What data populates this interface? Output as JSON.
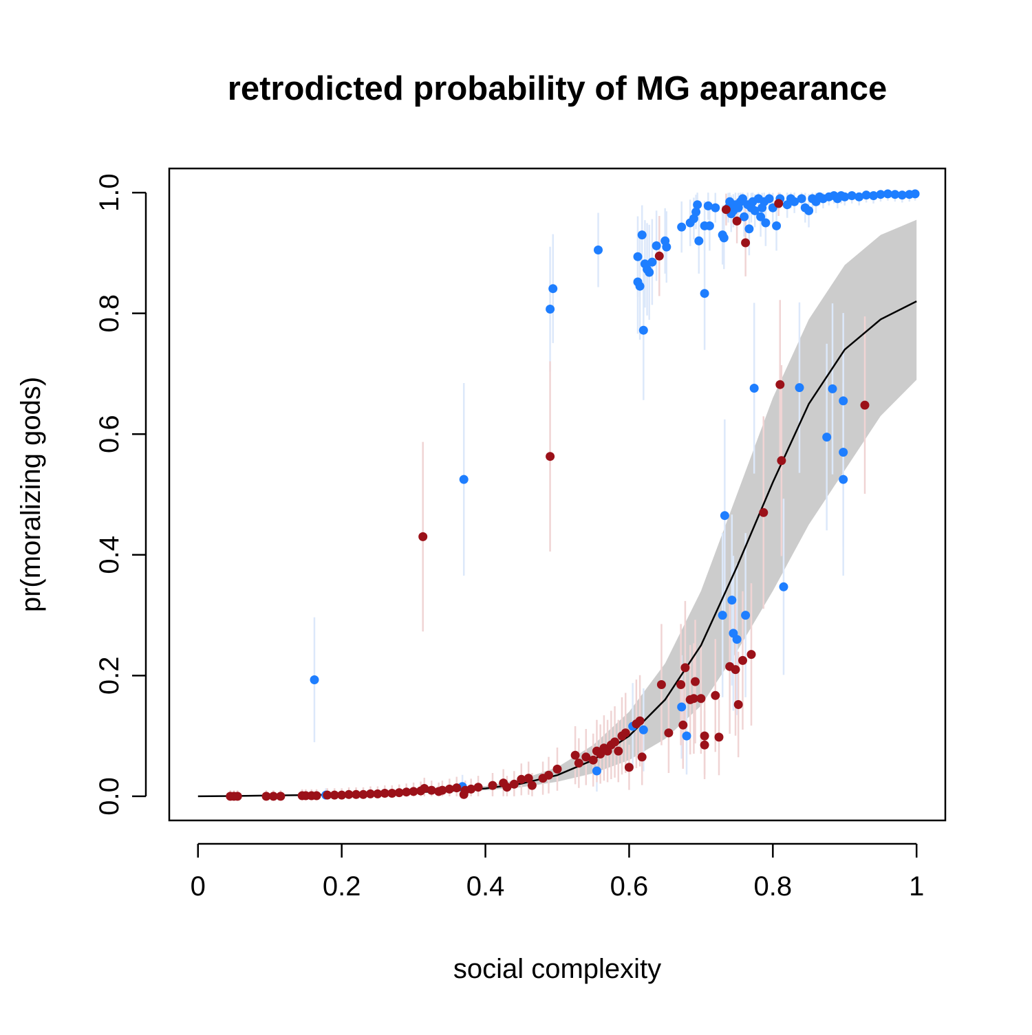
{
  "chart_data": {
    "type": "scatter",
    "title": "retrodicted probability of MG appearance",
    "xlabel": "social complexity",
    "ylabel": "pr(moralizing gods)",
    "xlim": [
      -0.04,
      1.04
    ],
    "ylim": [
      -0.04,
      1.04
    ],
    "x_ticks": [
      {
        "value": 0,
        "label": "0"
      },
      {
        "value": 0.2,
        "label": "0.2"
      },
      {
        "value": 0.4,
        "label": "0.4"
      },
      {
        "value": 0.6,
        "label": "0.6"
      },
      {
        "value": 0.8,
        "label": "0.8"
      },
      {
        "value": 1,
        "label": "1"
      }
    ],
    "y_ticks": [
      {
        "value": 0,
        "label": "0.0"
      },
      {
        "value": 0.2,
        "label": "0.2"
      },
      {
        "value": 0.4,
        "label": "0.4"
      },
      {
        "value": 0.6,
        "label": "0.6"
      },
      {
        "value": 0.8,
        "label": "0.8"
      },
      {
        "value": 1,
        "label": "1.0"
      }
    ],
    "grid": false,
    "legend": "none",
    "colors": {
      "blue_points": "#1E7EFF",
      "red_points": "#9B1119",
      "band_fill": "#CCCCCC",
      "curve": "#000000",
      "blue_interval": "#DCE8FA",
      "red_interval": "#F0D4D4"
    },
    "curve": {
      "x": [
        0,
        0.05,
        0.1,
        0.15,
        0.2,
        0.25,
        0.3,
        0.35,
        0.4,
        0.45,
        0.5,
        0.55,
        0.6,
        0.65,
        0.7,
        0.75,
        0.8,
        0.85,
        0.9,
        0.95,
        1
      ],
      "y": [
        0,
        0.0005,
        0.0012,
        0.002,
        0.003,
        0.0045,
        0.0065,
        0.009,
        0.013,
        0.021,
        0.035,
        0.06,
        0.1,
        0.16,
        0.25,
        0.38,
        0.52,
        0.65,
        0.74,
        0.79,
        0.82
      ],
      "lower": [
        0,
        0.0003,
        0.0008,
        0.0014,
        0.0022,
        0.0033,
        0.005,
        0.007,
        0.01,
        0.015,
        0.024,
        0.038,
        0.06,
        0.095,
        0.15,
        0.24,
        0.34,
        0.45,
        0.54,
        0.63,
        0.69
      ],
      "upper": [
        0,
        0.0008,
        0.0017,
        0.0028,
        0.0042,
        0.006,
        0.0085,
        0.012,
        0.017,
        0.028,
        0.048,
        0.085,
        0.14,
        0.22,
        0.34,
        0.5,
        0.66,
        0.79,
        0.88,
        0.93,
        0.955
      ]
    },
    "series": [
      {
        "color": "blue",
        "points": [
          [
            0.162,
            0.193
          ],
          [
            0.178,
            0.002
          ],
          [
            0.37,
            0.525
          ],
          [
            0.368,
            0.016
          ],
          [
            0.49,
            0.807
          ],
          [
            0.494,
            0.841
          ],
          [
            0.557,
            0.905
          ],
          [
            0.555,
            0.042
          ],
          [
            0.612,
            0.852
          ],
          [
            0.612,
            0.894
          ],
          [
            0.615,
            0.845
          ],
          [
            0.618,
            0.93
          ],
          [
            0.62,
            0.772
          ],
          [
            0.622,
            0.882
          ],
          [
            0.625,
            0.873
          ],
          [
            0.628,
            0.868
          ],
          [
            0.632,
            0.885
          ],
          [
            0.638,
            0.912
          ],
          [
            0.65,
            0.92
          ],
          [
            0.652,
            0.91
          ],
          [
            0.605,
            0.116
          ],
          [
            0.62,
            0.11
          ],
          [
            0.673,
            0.148
          ],
          [
            0.68,
            0.1
          ],
          [
            0.673,
            0.943
          ],
          [
            0.685,
            0.95
          ],
          [
            0.69,
            0.957
          ],
          [
            0.693,
            0.968
          ],
          [
            0.695,
            0.98
          ],
          [
            0.697,
            0.92
          ],
          [
            0.705,
            0.945
          ],
          [
            0.705,
            0.833
          ],
          [
            0.71,
            0.978
          ],
          [
            0.712,
            0.945
          ],
          [
            0.72,
            0.975
          ],
          [
            0.73,
            0.93
          ],
          [
            0.732,
            0.925
          ],
          [
            0.733,
            0.465
          ],
          [
            0.738,
            0.975
          ],
          [
            0.74,
            0.985
          ],
          [
            0.742,
            0.965
          ],
          [
            0.743,
            0.325
          ],
          [
            0.745,
            0.97
          ],
          [
            0.748,
            0.98
          ],
          [
            0.75,
            0.26
          ],
          [
            0.752,
            0.975
          ],
          [
            0.755,
            0.985
          ],
          [
            0.758,
            0.99
          ],
          [
            0.76,
            0.96
          ],
          [
            0.762,
            0.3
          ],
          [
            0.765,
            0.98
          ],
          [
            0.767,
            0.94
          ],
          [
            0.77,
            0.975
          ],
          [
            0.772,
            0.985
          ],
          [
            0.774,
            0.676
          ],
          [
            0.775,
            0.97
          ],
          [
            0.78,
            0.99
          ],
          [
            0.783,
            0.96
          ],
          [
            0.785,
            0.975
          ],
          [
            0.788,
            0.985
          ],
          [
            0.79,
            0.95
          ],
          [
            0.795,
            0.99
          ],
          [
            0.8,
            0.975
          ],
          [
            0.805,
            0.945
          ],
          [
            0.81,
            0.99
          ],
          [
            0.815,
            0.347
          ],
          [
            0.82,
            0.98
          ],
          [
            0.825,
            0.99
          ],
          [
            0.83,
            0.985
          ],
          [
            0.837,
            0.677
          ],
          [
            0.84,
            0.99
          ],
          [
            0.845,
            0.975
          ],
          [
            0.85,
            0.97
          ],
          [
            0.855,
            0.99
          ],
          [
            0.86,
            0.985
          ],
          [
            0.865,
            0.993
          ],
          [
            0.87,
            0.99
          ],
          [
            0.875,
            0.595
          ],
          [
            0.878,
            0.993
          ],
          [
            0.883,
            0.675
          ],
          [
            0.885,
            0.995
          ],
          [
            0.89,
            0.99
          ],
          [
            0.895,
            0.995
          ],
          [
            0.898,
            0.655
          ],
          [
            0.898,
            0.57
          ],
          [
            0.898,
            0.525
          ],
          [
            0.9,
            0.993
          ],
          [
            0.91,
            0.995
          ],
          [
            0.92,
            0.993
          ],
          [
            0.93,
            0.996
          ],
          [
            0.94,
            0.995
          ],
          [
            0.95,
            0.997
          ],
          [
            0.96,
            0.998
          ],
          [
            0.97,
            0.997
          ],
          [
            0.98,
            0.996
          ],
          [
            0.99,
            0.997
          ],
          [
            0.998,
            0.998
          ],
          [
            0.745,
            0.27
          ],
          [
            0.73,
            0.3
          ]
        ]
      },
      {
        "color": "red",
        "points": [
          [
            0.045,
            0
          ],
          [
            0.05,
            0
          ],
          [
            0.055,
            0
          ],
          [
            0.095,
            0
          ],
          [
            0.105,
            0
          ],
          [
            0.115,
            0
          ],
          [
            0.145,
            0.001
          ],
          [
            0.15,
            0.001
          ],
          [
            0.158,
            0.001
          ],
          [
            0.165,
            0.001
          ],
          [
            0.18,
            0.002
          ],
          [
            0.19,
            0.002
          ],
          [
            0.2,
            0.002
          ],
          [
            0.21,
            0.003
          ],
          [
            0.22,
            0.003
          ],
          [
            0.23,
            0.003
          ],
          [
            0.24,
            0.004
          ],
          [
            0.25,
            0.004
          ],
          [
            0.26,
            0.005
          ],
          [
            0.27,
            0.005
          ],
          [
            0.28,
            0.006
          ],
          [
            0.29,
            0.007
          ],
          [
            0.3,
            0.008
          ],
          [
            0.31,
            0.009
          ],
          [
            0.313,
            0.43
          ],
          [
            0.315,
            0.013
          ],
          [
            0.325,
            0.01
          ],
          [
            0.335,
            0.008
          ],
          [
            0.34,
            0.01
          ],
          [
            0.35,
            0.012
          ],
          [
            0.36,
            0.014
          ],
          [
            0.37,
            0.003
          ],
          [
            0.372,
            0.01
          ],
          [
            0.38,
            0.012
          ],
          [
            0.39,
            0.015
          ],
          [
            0.41,
            0.018
          ],
          [
            0.425,
            0.022
          ],
          [
            0.43,
            0.015
          ],
          [
            0.44,
            0.02
          ],
          [
            0.45,
            0.028
          ],
          [
            0.46,
            0.03
          ],
          [
            0.465,
            0.018
          ],
          [
            0.48,
            0.03
          ],
          [
            0.488,
            0.035
          ],
          [
            0.49,
            0.563
          ],
          [
            0.5,
            0.045
          ],
          [
            0.525,
            0.068
          ],
          [
            0.53,
            0.055
          ],
          [
            0.54,
            0.065
          ],
          [
            0.55,
            0.06
          ],
          [
            0.555,
            0.075
          ],
          [
            0.56,
            0.07
          ],
          [
            0.565,
            0.08
          ],
          [
            0.57,
            0.075
          ],
          [
            0.575,
            0.085
          ],
          [
            0.58,
            0.09
          ],
          [
            0.585,
            0.075
          ],
          [
            0.59,
            0.1
          ],
          [
            0.595,
            0.105
          ],
          [
            0.6,
            0.048
          ],
          [
            0.61,
            0.12
          ],
          [
            0.615,
            0.125
          ],
          [
            0.618,
            0.065
          ],
          [
            0.642,
            0.895
          ],
          [
            0.645,
            0.185
          ],
          [
            0.655,
            0.105
          ],
          [
            0.672,
            0.185
          ],
          [
            0.675,
            0.118
          ],
          [
            0.678,
            0.213
          ],
          [
            0.685,
            0.16
          ],
          [
            0.69,
            0.162
          ],
          [
            0.692,
            0.19
          ],
          [
            0.7,
            0.162
          ],
          [
            0.705,
            0.1
          ],
          [
            0.705,
            0.085
          ],
          [
            0.72,
            0.167
          ],
          [
            0.725,
            0.098
          ],
          [
            0.735,
            0.972
          ],
          [
            0.74,
            0.215
          ],
          [
            0.748,
            0.21
          ],
          [
            0.75,
            0.953
          ],
          [
            0.752,
            0.152
          ],
          [
            0.758,
            0.225
          ],
          [
            0.762,
            0.917
          ],
          [
            0.77,
            0.235
          ],
          [
            0.787,
            0.47
          ],
          [
            0.808,
            0.982
          ],
          [
            0.81,
            0.682
          ],
          [
            0.812,
            0.556
          ],
          [
            0.928,
            0.648
          ]
        ]
      }
    ]
  }
}
